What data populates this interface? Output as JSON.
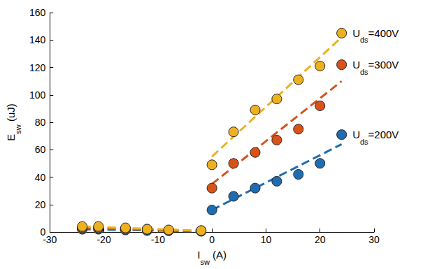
{
  "chart_data": {
    "type": "scatter",
    "xlabel": "Isw (A)",
    "ylabel": "Esw (uJ)",
    "xlim": [
      -30,
      30
    ],
    "xticks": [
      -30,
      -20,
      -10,
      0,
      10,
      20,
      30
    ],
    "ylim": [
      0,
      160
    ],
    "yticks": [
      0,
      20,
      40,
      60,
      80,
      100,
      120,
      140,
      160
    ],
    "grid": false,
    "series": [
      {
        "name": "Uds=200V",
        "color": "#1f6db0",
        "marker": "circle",
        "line_style": "dashed",
        "x": [
          -24,
          -21,
          -16,
          -12,
          -8,
          -2,
          0,
          4,
          8,
          12,
          16,
          20,
          24
        ],
        "values": [
          2,
          2,
          1.5,
          1,
          1,
          0.5,
          16,
          26,
          32,
          37,
          42,
          50,
          71
        ],
        "fit": [
          {
            "x": [
              -24,
              -1
            ],
            "values": [
              2,
              0.4
            ]
          },
          {
            "x": [
              0,
              24
            ],
            "values": [
              16,
              64
            ]
          }
        ]
      },
      {
        "name": "Uds=300V",
        "color": "#d95319",
        "marker": "circle",
        "line_style": "dashed",
        "x": [
          -24,
          -21,
          -16,
          -12,
          -8,
          -2,
          0,
          4,
          8,
          12,
          16,
          20,
          24
        ],
        "values": [
          3,
          3,
          2,
          2,
          1,
          1,
          32,
          50,
          58,
          67,
          75,
          92,
          122
        ],
        "fit": [
          {
            "x": [
              -24,
              -1
            ],
            "values": [
              3,
              0.6
            ]
          },
          {
            "x": [
              0,
              24
            ],
            "values": [
              35,
              110
            ]
          }
        ]
      },
      {
        "name": "Uds=400V",
        "color": "#edb120",
        "marker": "circle",
        "line_style": "dashed",
        "x": [
          -24,
          -21,
          -16,
          -12,
          -8,
          -2,
          0,
          4,
          8,
          12,
          16,
          20,
          24
        ],
        "values": [
          4,
          4,
          3,
          2,
          1.5,
          1,
          49,
          73,
          89,
          97,
          111,
          121,
          145
        ],
        "fit": [
          {
            "x": [
              -24,
              -1
            ],
            "values": [
              4,
              0.8
            ]
          },
          {
            "x": [
              0,
              24
            ],
            "values": [
              55,
              142
            ]
          }
        ]
      }
    ]
  }
}
